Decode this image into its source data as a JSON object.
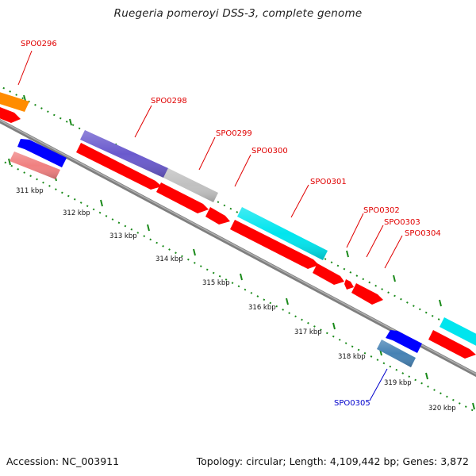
{
  "title": "Ruegeria pomeroyi DSS-3, complete genome",
  "footer": {
    "accession": "Accession: NC_003911",
    "topology": "Topology: circular; Length: 4,109,442 bp; Genes: 3,872"
  },
  "kbp_labels": [
    "311 kbp",
    "312 kbp",
    "313 kbp",
    "314 kbp",
    "315 kbp",
    "316 kbp",
    "317 kbp",
    "318 kbp",
    "319 kbp",
    "320 kbp"
  ],
  "genes": [
    {
      "name": "SPO0296",
      "color": "#ff8c00"
    },
    {
      "name": "SPO0298",
      "color": "#6a5acd"
    },
    {
      "name": "SPO0299",
      "color": "#c0c0c0"
    },
    {
      "name": "SPO0300",
      "color": "#ff0000"
    },
    {
      "name": "SPO0301",
      "color": "#00e5ee"
    },
    {
      "name": "SPO0302",
      "color": "#ff0000"
    },
    {
      "name": "SPO0303",
      "color": "#ff0000"
    },
    {
      "name": "SPO0304",
      "color": "#ff0000"
    },
    {
      "name": "SPO0305",
      "color": "#4682b4"
    }
  ],
  "colors": {
    "backbone": "#808080",
    "tick_dots": "#1a8a1a",
    "label_red": "#e00000",
    "label_blue": "#0000cc"
  }
}
